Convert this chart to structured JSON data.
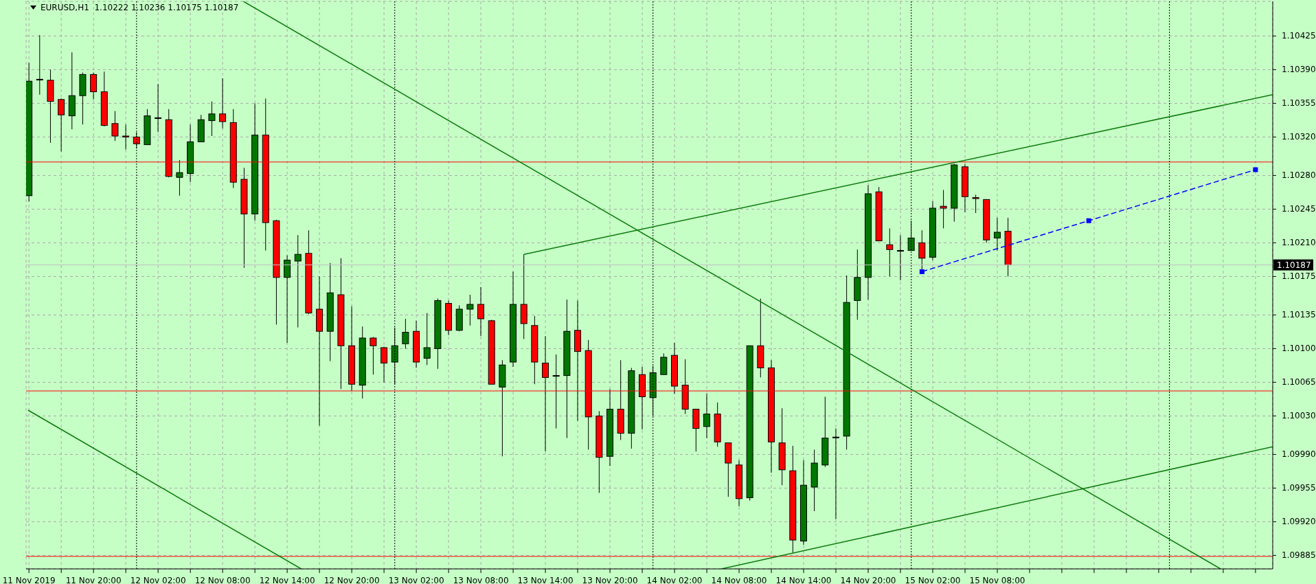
{
  "chart_data": {
    "type": "candlestick",
    "title": "EURUSD,H1  1.10222 1.10236 1.10175 1.10187",
    "x": [
      "2019-11-11T14:00",
      "2019-11-11T15:00",
      "2019-11-11T16:00",
      "2019-11-11T17:00",
      "2019-11-11T18:00",
      "2019-11-11T19:00",
      "2019-11-11T20:00",
      "2019-11-11T21:00",
      "2019-11-11T22:00",
      "2019-11-11T23:00",
      "2019-11-12T00:00",
      "2019-11-12T01:00",
      "2019-11-12T02:00",
      "2019-11-12T03:00",
      "2019-11-12T04:00",
      "2019-11-12T05:00",
      "2019-11-12T06:00",
      "2019-11-12T07:00",
      "2019-11-12T08:00",
      "2019-11-12T09:00",
      "2019-11-12T10:00",
      "2019-11-12T11:00",
      "2019-11-12T12:00",
      "2019-11-12T13:00",
      "2019-11-12T14:00",
      "2019-11-12T15:00",
      "2019-11-12T16:00",
      "2019-11-12T17:00",
      "2019-11-12T18:00",
      "2019-11-12T19:00",
      "2019-11-12T20:00",
      "2019-11-12T21:00",
      "2019-11-12T22:00",
      "2019-11-12T23:00",
      "2019-11-13T00:00",
      "2019-11-13T01:00",
      "2019-11-13T02:00",
      "2019-11-13T03:00",
      "2019-11-13T04:00",
      "2019-11-13T05:00",
      "2019-11-13T06:00",
      "2019-11-13T07:00",
      "2019-11-13T08:00",
      "2019-11-13T09:00",
      "2019-11-13T10:00",
      "2019-11-13T11:00",
      "2019-11-13T12:00",
      "2019-11-13T13:00",
      "2019-11-13T14:00",
      "2019-11-13T15:00",
      "2019-11-13T16:00",
      "2019-11-13T17:00",
      "2019-11-13T18:00",
      "2019-11-13T19:00",
      "2019-11-13T20:00",
      "2019-11-13T21:00",
      "2019-11-13T22:00",
      "2019-11-13T23:00",
      "2019-11-14T00:00",
      "2019-11-14T01:00",
      "2019-11-14T02:00",
      "2019-11-14T03:00",
      "2019-11-14T04:00",
      "2019-11-14T05:00",
      "2019-11-14T06:00",
      "2019-11-14T07:00",
      "2019-11-14T08:00",
      "2019-11-14T09:00",
      "2019-11-14T10:00",
      "2019-11-14T11:00",
      "2019-11-14T12:00",
      "2019-11-14T13:00",
      "2019-11-14T14:00",
      "2019-11-14T15:00",
      "2019-11-14T16:00",
      "2019-11-14T17:00",
      "2019-11-14T18:00",
      "2019-11-14T19:00",
      "2019-11-14T20:00",
      "2019-11-14T21:00",
      "2019-11-14T22:00",
      "2019-11-14T23:00",
      "2019-11-15T00:00",
      "2019-11-15T01:00",
      "2019-11-15T02:00",
      "2019-11-15T03:00",
      "2019-11-15T04:00",
      "2019-11-15T05:00",
      "2019-11-15T06:00",
      "2019-11-15T07:00",
      "2019-11-15T08:00",
      "2019-11-15T09:00"
    ],
    "ohlc": [
      [
        1.10259,
        1.10397,
        1.10253,
        1.10378
      ],
      [
        1.1038,
        1.10426,
        1.10364,
        1.1038
      ],
      [
        1.10379,
        1.1039,
        1.10314,
        1.10357
      ],
      [
        1.10359,
        1.1036,
        1.10305,
        1.10343
      ],
      [
        1.10342,
        1.10408,
        1.10328,
        1.10363
      ],
      [
        1.10363,
        1.10387,
        1.10333,
        1.10385
      ],
      [
        1.10385,
        1.10387,
        1.10359,
        1.10367
      ],
      [
        1.10367,
        1.10388,
        1.10331,
        1.10332
      ],
      [
        1.10334,
        1.10347,
        1.10316,
        1.10321
      ],
      [
        1.10321,
        1.10333,
        1.10307,
        1.1032
      ],
      [
        1.1032,
        1.10325,
        1.10308,
        1.10313
      ],
      [
        1.10312,
        1.10349,
        1.10312,
        1.10342
      ],
      [
        1.1034,
        1.10375,
        1.10325,
        1.1034
      ],
      [
        1.10338,
        1.10349,
        1.10278,
        1.10279
      ],
      [
        1.10278,
        1.10296,
        1.10259,
        1.10283
      ],
      [
        1.10282,
        1.10333,
        1.10273,
        1.10315
      ],
      [
        1.10315,
        1.10343,
        1.10315,
        1.10338
      ],
      [
        1.10337,
        1.10357,
        1.10321,
        1.10344
      ],
      [
        1.10344,
        1.10381,
        1.10329,
        1.10336
      ],
      [
        1.10335,
        1.10349,
        1.10267,
        1.10273
      ],
      [
        1.10276,
        1.10288,
        1.10184,
        1.1024
      ],
      [
        1.1024,
        1.10355,
        1.10233,
        1.10322
      ],
      [
        1.10322,
        1.1036,
        1.10202,
        1.10231
      ],
      [
        1.10233,
        1.10234,
        1.10125,
        1.10174
      ],
      [
        1.10174,
        1.10197,
        1.10106,
        1.10192
      ],
      [
        1.10191,
        1.10218,
        1.10122,
        1.10198
      ],
      [
        1.10199,
        1.10223,
        1.10136,
        1.10137
      ],
      [
        1.10141,
        1.10175,
        1.1002,
        1.10118
      ],
      [
        1.10118,
        1.10189,
        1.10087,
        1.10158
      ],
      [
        1.10156,
        1.10194,
        1.10058,
        1.10103
      ],
      [
        1.10103,
        1.10144,
        1.10056,
        1.10063
      ],
      [
        1.10062,
        1.10123,
        1.10048,
        1.10111
      ],
      [
        1.10111,
        1.10112,
        1.10073,
        1.10103
      ],
      [
        1.10101,
        1.10102,
        1.10065,
        1.10085
      ],
      [
        1.10086,
        1.10122,
        1.10063,
        1.10103
      ],
      [
        1.10105,
        1.10131,
        1.101,
        1.10117
      ],
      [
        1.10118,
        1.10129,
        1.1008,
        1.10086
      ],
      [
        1.1009,
        1.10137,
        1.10083,
        1.10101
      ],
      [
        1.101,
        1.10152,
        1.10079,
        1.1015
      ],
      [
        1.10147,
        1.1015,
        1.10114,
        1.10119
      ],
      [
        1.10119,
        1.10145,
        1.10118,
        1.10141
      ],
      [
        1.10141,
        1.10156,
        1.10124,
        1.10146
      ],
      [
        1.10146,
        1.10164,
        1.10113,
        1.10131
      ],
      [
        1.10129,
        1.1013,
        1.10063,
        1.10063
      ],
      [
        1.1006,
        1.10088,
        1.09988,
        1.10083
      ],
      [
        1.10086,
        1.1018,
        1.10081,
        1.10146
      ],
      [
        1.10146,
        1.10198,
        1.1011,
        1.10126
      ],
      [
        1.10124,
        1.10134,
        1.10063,
        1.10086
      ],
      [
        1.10085,
        1.10113,
        1.09993,
        1.1007
      ],
      [
        1.10072,
        1.10094,
        1.10017,
        1.10072
      ],
      [
        1.10072,
        1.10151,
        1.10007,
        1.10118
      ],
      [
        1.10119,
        1.1015,
        1.10025,
        1.10097
      ],
      [
        1.10098,
        1.10109,
        1.09995,
        1.10029
      ],
      [
        1.1003,
        1.10035,
        1.0995,
        1.09987
      ],
      [
        1.09988,
        1.10058,
        1.09978,
        1.10037
      ],
      [
        1.10037,
        1.10088,
        1.10005,
        1.10012
      ],
      [
        1.10012,
        1.1008,
        1.09996,
        1.10077
      ],
      [
        1.10073,
        1.10081,
        1.10016,
        1.1005
      ],
      [
        1.10049,
        1.10082,
        1.1003,
        1.10075
      ],
      [
        1.10073,
        1.10095,
        1.10073,
        1.10091
      ],
      [
        1.10093,
        1.10106,
        1.10053,
        1.10061
      ],
      [
        1.10062,
        1.10089,
        1.10032,
        1.10037
      ],
      [
        1.10037,
        1.10037,
        1.09993,
        1.10017
      ],
      [
        1.10019,
        1.10053,
        1.10007,
        1.10032
      ],
      [
        1.10032,
        1.10044,
        1.09998,
        1.10003
      ],
      [
        1.10002,
        1.10002,
        1.09946,
        1.09981
      ],
      [
        1.09979,
        1.09984,
        1.09936,
        1.09944
      ],
      [
        1.09945,
        1.10103,
        1.09942,
        1.10103
      ],
      [
        1.10103,
        1.10152,
        1.1007,
        1.1008
      ],
      [
        1.1008,
        1.10088,
        1.09971,
        1.10003
      ],
      [
        1.10002,
        1.10038,
        1.09958,
        1.09974
      ],
      [
        1.09973,
        1.09999,
        1.09888,
        1.09901
      ],
      [
        1.099,
        1.09984,
        1.09896,
        1.09958
      ],
      [
        1.09956,
        1.09995,
        1.09931,
        1.09981
      ],
      [
        1.09979,
        1.1005,
        1.09977,
        1.10007
      ],
      [
        1.10008,
        1.10017,
        1.09923,
        1.10008
      ],
      [
        1.10009,
        1.10176,
        1.09995,
        1.10148
      ],
      [
        1.1015,
        1.10203,
        1.1013,
        1.10174
      ],
      [
        1.10174,
        1.1027,
        1.10151,
        1.10261
      ],
      [
        1.10263,
        1.10268,
        1.10212,
        1.10212
      ],
      [
        1.10208,
        1.10225,
        1.10175,
        1.10203
      ],
      [
        1.10202,
        1.10218,
        1.10171,
        1.10202
      ],
      [
        1.10202,
        1.10233,
        1.10202,
        1.10215
      ],
      [
        1.1021,
        1.10223,
        1.1018,
        1.10194
      ],
      [
        1.10195,
        1.10253,
        1.10192,
        1.10246
      ],
      [
        1.10248,
        1.10265,
        1.10225,
        1.10246
      ],
      [
        1.10246,
        1.10292,
        1.10232,
        1.10291
      ],
      [
        1.10289,
        1.10292,
        1.10242,
        1.10258
      ],
      [
        1.10257,
        1.1026,
        1.10241,
        1.10256
      ],
      [
        1.10255,
        1.10255,
        1.1021,
        1.10213
      ],
      [
        1.10215,
        1.10236,
        1.10202,
        1.10221
      ],
      [
        1.10222,
        1.10236,
        1.10175,
        1.10187
      ]
    ],
    "colors": [
      "#007800",
      "#000000",
      "#ff0000",
      "#ff0000",
      "#007800",
      "#007800",
      "#ff0000",
      "#ff0000",
      "#ff0000",
      "#ff0000",
      "#ff0000",
      "#007800",
      "#000000",
      "#ff0000",
      "#007800",
      "#007800",
      "#007800",
      "#007800",
      "#ff0000",
      "#ff0000",
      "#ff0000",
      "#007800",
      "#ff0000",
      "#ff0000",
      "#007800",
      "#007800",
      "#ff0000",
      "#ff0000",
      "#007800",
      "#ff0000",
      "#ff0000",
      "#007800",
      "#ff0000",
      "#ff0000",
      "#007800",
      "#007800",
      "#ff0000",
      "#007800",
      "#007800",
      "#ff0000",
      "#007800",
      "#007800",
      "#ff0000",
      "#ff0000",
      "#007800",
      "#007800",
      "#ff0000",
      "#ff0000",
      "#ff0000",
      "#000000",
      "#007800",
      "#ff0000",
      "#ff0000",
      "#ff0000",
      "#007800",
      "#ff0000",
      "#007800",
      "#ff0000",
      "#007800",
      "#007800",
      "#ff0000",
      "#ff0000",
      "#ff0000",
      "#007800",
      "#ff0000",
      "#ff0000",
      "#ff0000",
      "#007800",
      "#ff0000",
      "#ff0000",
      "#ff0000",
      "#ff0000",
      "#007800",
      "#007800",
      "#007800",
      "#000000",
      "#007800",
      "#007800",
      "#007800",
      "#ff0000",
      "#ff0000",
      "#000000",
      "#007800",
      "#ff0000",
      "#007800",
      "#ff0000",
      "#007800",
      "#ff0000",
      "#ff0000",
      "#ff0000",
      "#007800",
      "#ff0000"
    ],
    "series": [
      {
        "type": "line",
        "color": "#0a7a0a",
        "x": [
          "2019-11-12T09:56",
          "2019-11-16T04:45"
        ],
        "values": [
          1.10461,
          1.09871
        ]
      },
      {
        "type": "line",
        "color": "#0a7a0a",
        "x": [
          "2019-11-11T13:55",
          "2019-11-12T15:18"
        ],
        "values": [
          1.10036,
          1.09871
        ]
      },
      {
        "type": "line",
        "color": "#0a7a0a",
        "x": [
          "2019-11-13T12:00",
          "2019-11-16T09:36"
        ],
        "values": [
          1.10198,
          1.10364
        ]
      },
      {
        "type": "line",
        "color": "#0a7a0a",
        "x": [
          "2019-11-14T06:22",
          "2019-11-16T09:36"
        ],
        "values": [
          1.09871,
          1.09998
        ]
      },
      {
        "type": "line",
        "color": "#0000ff",
        "line_style": "dashed",
        "marker": "square",
        "x": [
          "2019-11-15T01:00",
          "2019-11-15T16:30",
          "2019-11-16T08:00"
        ],
        "values": [
          1.1018,
          1.10233,
          1.10286
        ]
      }
    ],
    "ref_lines": [
      {
        "axis": "y",
        "value": 1.10294,
        "color": "#ff0000"
      },
      {
        "axis": "y",
        "value": 1.10056,
        "color": "#ff0000"
      },
      {
        "axis": "y",
        "value": 1.09884,
        "color": "#ff0000"
      },
      {
        "axis": "y",
        "value": 1.10187,
        "color": "#c0c0c0",
        "label": "1.10187"
      },
      {
        "axis": "x",
        "value": "2019-11-12T00:00",
        "color": "#000000",
        "line_style": "dotted"
      },
      {
        "axis": "x",
        "value": "2019-11-13T00:00",
        "color": "#000000",
        "line_style": "dotted"
      },
      {
        "axis": "x",
        "value": "2019-11-14T00:00",
        "color": "#000000",
        "line_style": "dotted"
      },
      {
        "axis": "x",
        "value": "2019-11-15T00:00",
        "color": "#000000",
        "line_style": "dotted"
      },
      {
        "axis": "x",
        "value": "2019-11-16T00:00",
        "color": "#000000",
        "line_style": "dotted"
      }
    ],
    "xlim": [
      "2019-11-11T13:44",
      "2019-11-16T09:36"
    ],
    "xticks": [
      {
        "value": "2019-11-11T14:00",
        "label": "11 Nov 2019"
      },
      {
        "value": "2019-11-11T17:00",
        "label": null
      },
      {
        "value": "2019-11-11T20:00",
        "label": "11 Nov 20:00"
      },
      {
        "value": "2019-11-11T23:00",
        "label": null
      },
      {
        "value": "2019-11-12T02:00",
        "label": "12 Nov 02:00"
      },
      {
        "value": "2019-11-12T05:00",
        "label": null
      },
      {
        "value": "2019-11-12T08:00",
        "label": "12 Nov 08:00"
      },
      {
        "value": "2019-11-12T11:00",
        "label": null
      },
      {
        "value": "2019-11-12T14:00",
        "label": "12 Nov 14:00"
      },
      {
        "value": "2019-11-12T17:00",
        "label": null
      },
      {
        "value": "2019-11-12T20:00",
        "label": "12 Nov 20:00"
      },
      {
        "value": "2019-11-12T23:00",
        "label": null
      },
      {
        "value": "2019-11-13T02:00",
        "label": "13 Nov 02:00"
      },
      {
        "value": "2019-11-13T05:00",
        "label": null
      },
      {
        "value": "2019-11-13T08:00",
        "label": "13 Nov 08:00"
      },
      {
        "value": "2019-11-13T11:00",
        "label": null
      },
      {
        "value": "2019-11-13T14:00",
        "label": "13 Nov 14:00"
      },
      {
        "value": "2019-11-13T17:00",
        "label": null
      },
      {
        "value": "2019-11-13T20:00",
        "label": "13 Nov 20:00"
      },
      {
        "value": "2019-11-13T23:00",
        "label": null
      },
      {
        "value": "2019-11-14T02:00",
        "label": "14 Nov 02:00"
      },
      {
        "value": "2019-11-14T05:00",
        "label": null
      },
      {
        "value": "2019-11-14T08:00",
        "label": "14 Nov 08:00"
      },
      {
        "value": "2019-11-14T11:00",
        "label": null
      },
      {
        "value": "2019-11-14T14:00",
        "label": "14 Nov 14:00"
      },
      {
        "value": "2019-11-14T17:00",
        "label": null
      },
      {
        "value": "2019-11-14T20:00",
        "label": "14 Nov 20:00"
      },
      {
        "value": "2019-11-14T23:00",
        "label": null
      },
      {
        "value": "2019-11-15T02:00",
        "label": "15 Nov 02:00"
      },
      {
        "value": "2019-11-15T05:00",
        "label": null
      },
      {
        "value": "2019-11-15T08:00",
        "label": "15 Nov 08:00"
      },
      {
        "value": "2019-11-15T11:00",
        "label": null
      },
      {
        "value": "2019-11-15T14:00",
        "label": null
      },
      {
        "value": "2019-11-15T17:00",
        "label": null
      },
      {
        "value": "2019-11-15T20:00",
        "label": null
      },
      {
        "value": "2019-11-15T23:00",
        "label": null
      },
      {
        "value": "2019-11-16T02:00",
        "label": null
      },
      {
        "value": "2019-11-16T05:00",
        "label": null
      },
      {
        "value": "2019-11-16T08:00",
        "label": null
      }
    ],
    "ylim": [
      1.09871,
      1.10461
    ],
    "yticks": [
      {
        "value": 1.09885,
        "label": "1.09885"
      },
      {
        "value": 1.0992,
        "label": "1.09920"
      },
      {
        "value": 1.09955,
        "label": "1.09955"
      },
      {
        "value": 1.0999,
        "label": "1.09990"
      },
      {
        "value": 1.1003,
        "label": "1.10030"
      },
      {
        "value": 1.10065,
        "label": "1.10065"
      },
      {
        "value": 1.101,
        "label": "1.10100"
      },
      {
        "value": 1.10135,
        "label": "1.10135"
      },
      {
        "value": 1.10175,
        "label": "1.10175"
      },
      {
        "value": 1.1021,
        "label": "1.10210"
      },
      {
        "value": 1.10245,
        "label": "1.10245"
      },
      {
        "value": 1.1028,
        "label": "1.10280"
      },
      {
        "value": 1.1032,
        "label": "1.10320"
      },
      {
        "value": 1.10355,
        "label": "1.10355"
      },
      {
        "value": 1.1039,
        "label": "1.10390"
      },
      {
        "value": 1.10425,
        "label": "1.10425"
      }
    ],
    "grid": true
  }
}
